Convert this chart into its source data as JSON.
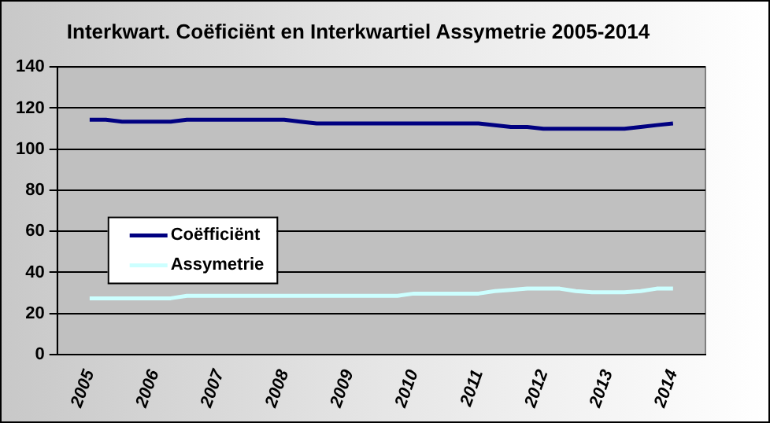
{
  "chart_data": {
    "type": "line",
    "title": "Interkwart. Coëficiënt en Interkwartiel Assymetrie 2005-2014",
    "x": [
      2005,
      2005.25,
      2005.5,
      2005.75,
      2006,
      2006.25,
      2006.5,
      2006.75,
      2007,
      2007.25,
      2007.5,
      2007.75,
      2008,
      2008.25,
      2008.5,
      2008.75,
      2009,
      2009.25,
      2009.5,
      2009.75,
      2010,
      2010.25,
      2010.5,
      2010.75,
      2011,
      2011.25,
      2011.5,
      2011.75,
      2012,
      2012.25,
      2012.5,
      2012.75,
      2013,
      2013.25,
      2013.5,
      2013.75,
      2014
    ],
    "series": [
      {
        "name": "Coëfficiënt",
        "color": "#000080",
        "values": [
          114.3,
          114.3,
          113.4,
          113.4,
          113.4,
          113.4,
          114.3,
          114.3,
          114.3,
          114.3,
          114.3,
          114.3,
          114.3,
          113.4,
          112.5,
          112.5,
          112.5,
          112.5,
          112.5,
          112.5,
          112.5,
          112.5,
          112.5,
          112.5,
          112.5,
          111.7,
          110.8,
          110.8,
          109.9,
          109.9,
          109.9,
          109.9,
          109.9,
          109.9,
          110.8,
          111.7,
          112.5
        ]
      },
      {
        "name": "Assymetrie",
        "color": "#ccffff",
        "values": [
          27.4,
          27.4,
          27.4,
          27.4,
          27.4,
          27.4,
          28.6,
          28.6,
          28.6,
          28.6,
          28.6,
          28.6,
          28.6,
          28.6,
          28.6,
          28.6,
          28.6,
          28.6,
          28.6,
          28.6,
          29.7,
          29.7,
          29.7,
          29.7,
          29.7,
          30.9,
          31.5,
          32.1,
          32.1,
          32.1,
          30.9,
          30.3,
          30.3,
          30.3,
          30.9,
          32.1,
          32.1
        ]
      }
    ],
    "xlim": [
      2004.5,
      2014.5
    ],
    "xticks": [
      2005,
      2006,
      2007,
      2008,
      2009,
      2010,
      2011,
      2012,
      2013,
      2014
    ],
    "ylim": [
      0,
      140
    ],
    "yticks": [
      0,
      20,
      40,
      60,
      80,
      100,
      120,
      140
    ],
    "grid": "y",
    "legend": "left",
    "marker": "none",
    "line_style": "solid"
  }
}
